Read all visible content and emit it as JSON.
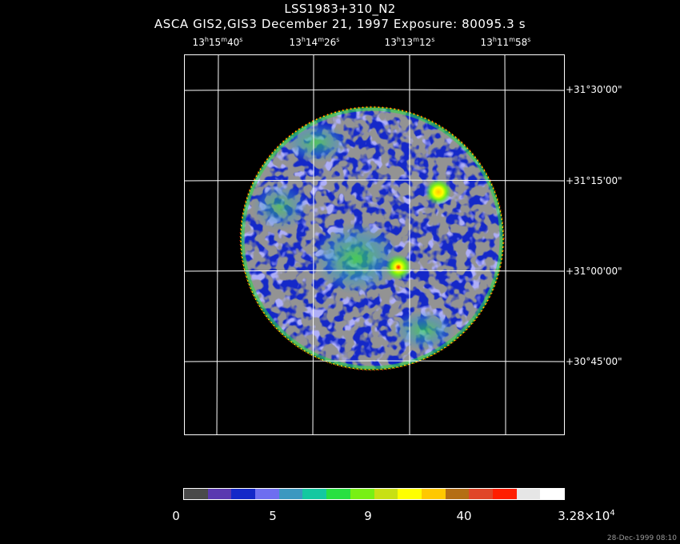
{
  "title": "LSS1983+310_N2",
  "subtitle": "ASCA GIS2,GIS3 December 21, 1997 Exposure: 80095.3 s",
  "ra_labels": [
    {
      "h": "13",
      "m": "15",
      "s": "40"
    },
    {
      "h": "13",
      "m": "14",
      "s": "26"
    },
    {
      "h": "13",
      "m": "13",
      "s": "12"
    },
    {
      "h": "13",
      "m": "11",
      "s": "58"
    }
  ],
  "dec_labels": [
    "+31°30'00\"",
    "+31°15'00\"",
    "+31°00'00\"",
    "+30°45'00\""
  ],
  "colorbar": {
    "labels": [
      "0",
      "5",
      "9",
      "40"
    ],
    "max_mantissa": "3.28×10",
    "max_exponent": "4",
    "colors": [
      "#4a4a4a",
      "#5a38b0",
      "#1428c8",
      "#6e6ef0",
      "#3c98c0",
      "#14c8a0",
      "#28e040",
      "#78f014",
      "#c8e014",
      "#ffff00",
      "#ffc800",
      "#b46e14",
      "#e04628",
      "#ff1e00",
      "#e6e6e6",
      "#ffffff"
    ]
  },
  "image_colors": {
    "background": "#1428c8",
    "low": "#4a4a4a",
    "mid": "#6e6ef0",
    "teal": "#3c98c0",
    "green": "#28e040",
    "yellow": "#ffff00",
    "red": "#ff1e00"
  },
  "timestamp": "28-Dec-1999 08:10"
}
